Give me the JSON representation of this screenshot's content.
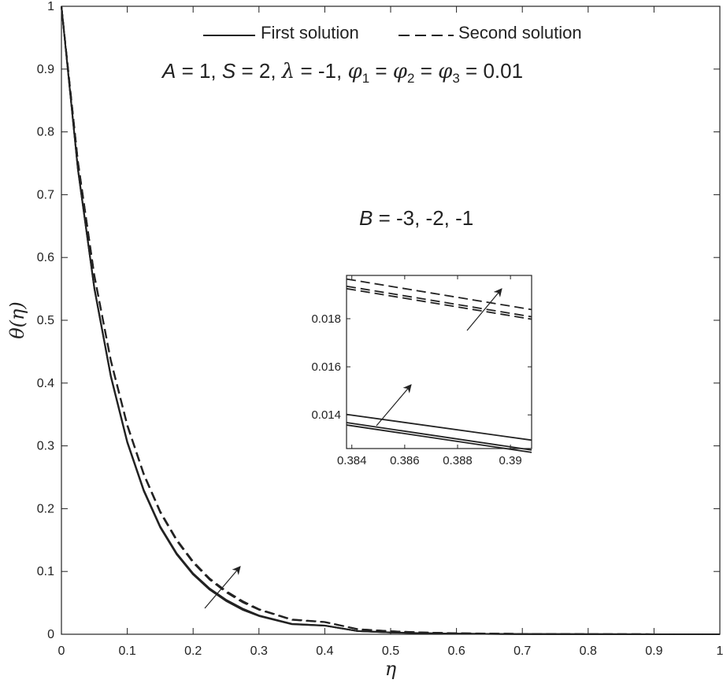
{
  "chart_data": {
    "type": "line",
    "xlabel": "η",
    "ylabel": "θ(η)",
    "xlim": [
      0,
      1
    ],
    "ylim": [
      0,
      1
    ],
    "xticks": [
      "0",
      "0.1",
      "0.2",
      "0.3",
      "0.4",
      "0.5",
      "0.6",
      "0.7",
      "0.8",
      "0.9",
      "1"
    ],
    "yticks": [
      "0",
      "0.1",
      "0.2",
      "0.3",
      "0.4",
      "0.5",
      "0.6",
      "0.7",
      "0.8",
      "0.9",
      "1"
    ],
    "grid": false,
    "legend": {
      "placement": "top-center",
      "entries": [
        {
          "label": "First solution",
          "style": "solid"
        },
        {
          "label": "Second solution",
          "style": "dashed"
        }
      ]
    },
    "parameters_text": "A = 1, S = 2, λ = -1, φ1 = φ2 = φ3 = 0.01",
    "annotation": "B = -3, -2, -1",
    "x": [
      0,
      0.025,
      0.05,
      0.075,
      0.1,
      0.125,
      0.15,
      0.175,
      0.2,
      0.225,
      0.25,
      0.275,
      0.3,
      0.35,
      0.4,
      0.45,
      0.5,
      0.55,
      0.6,
      0.7,
      0.8,
      0.9,
      1.0
    ],
    "series": [
      {
        "style": "solid",
        "values": [
          1.0,
          0.74,
          0.55,
          0.41,
          0.305,
          0.228,
          0.17,
          0.127,
          0.095,
          0.071,
          0.053,
          0.039,
          0.029,
          0.016,
          0.0137,
          0.005,
          0.0028,
          0.0016,
          0.0009,
          0.0003,
          0.0001,
          3e-05,
          0.0
        ]
      },
      {
        "style": "solid",
        "values": [
          1.0,
          0.741,
          0.551,
          0.411,
          0.306,
          0.229,
          0.171,
          0.128,
          0.096,
          0.072,
          0.054,
          0.04,
          0.0295,
          0.0163,
          0.0138,
          0.0051,
          0.0029,
          0.0016,
          0.0009,
          0.0003,
          0.0001,
          3e-05,
          0.0
        ]
      },
      {
        "style": "solid",
        "values": [
          1.0,
          0.742,
          0.552,
          0.412,
          0.307,
          0.23,
          0.172,
          0.129,
          0.097,
          0.073,
          0.055,
          0.041,
          0.03,
          0.0166,
          0.014,
          0.0052,
          0.003,
          0.0017,
          0.001,
          0.0003,
          0.0001,
          3e-05,
          0.0
        ]
      },
      {
        "style": "dashed",
        "values": [
          1.0,
          0.752,
          0.57,
          0.435,
          0.332,
          0.254,
          0.194,
          0.149,
          0.114,
          0.087,
          0.067,
          0.051,
          0.039,
          0.023,
          0.0193,
          0.008,
          0.0047,
          0.0028,
          0.0016,
          0.0006,
          0.0002,
          7e-05,
          0.0
        ]
      },
      {
        "style": "dashed",
        "values": [
          1.0,
          0.753,
          0.571,
          0.436,
          0.333,
          0.255,
          0.195,
          0.15,
          0.115,
          0.088,
          0.068,
          0.052,
          0.0395,
          0.0233,
          0.0194,
          0.0081,
          0.0048,
          0.0028,
          0.0016,
          0.0006,
          0.0002,
          7e-05,
          0.0
        ]
      },
      {
        "style": "dashed",
        "values": [
          1.0,
          0.754,
          0.572,
          0.437,
          0.334,
          0.256,
          0.196,
          0.151,
          0.116,
          0.089,
          0.069,
          0.053,
          0.04,
          0.0236,
          0.0196,
          0.0082,
          0.0049,
          0.0029,
          0.0017,
          0.0006,
          0.0002,
          7e-05,
          0.0
        ]
      }
    ],
    "inset": {
      "type": "line",
      "xlim": [
        0.3838,
        0.3908
      ],
      "ylim": [
        0.0126,
        0.0198
      ],
      "xticks": [
        "0.384",
        "0.386",
        "0.388",
        "0.39"
      ],
      "yticks": [
        "0.014",
        "0.016",
        "0.018"
      ],
      "x": [
        0.3838,
        0.3908
      ],
      "series": [
        {
          "style": "solid",
          "values": [
            0.01358,
            0.01244
          ]
        },
        {
          "style": "solid",
          "values": [
            0.01368,
            0.01254
          ]
        },
        {
          "style": "solid",
          "values": [
            0.01402,
            0.01295
          ]
        },
        {
          "style": "dashed",
          "values": [
            0.01925,
            0.01798
          ]
        },
        {
          "style": "dashed",
          "values": [
            0.01935,
            0.01808
          ]
        },
        {
          "style": "dashed",
          "values": [
            0.01965,
            0.01838
          ]
        }
      ]
    }
  }
}
